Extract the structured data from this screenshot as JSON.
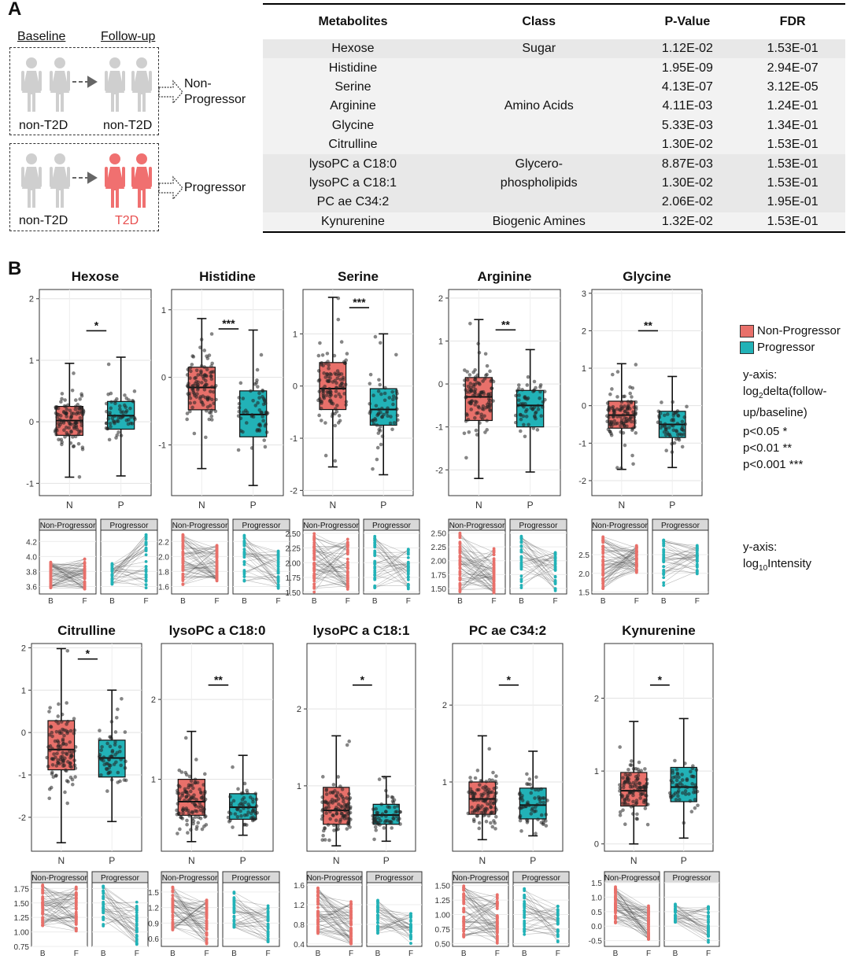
{
  "panel_a": {
    "letter": "A",
    "schematic": {
      "baseline": "Baseline",
      "followup": "Follow-up",
      "row1": {
        "left": "non-T2D",
        "right": "non-T2D",
        "outcome_line1": "Non-",
        "outcome_line2": "Progressor"
      },
      "row2": {
        "left": "non-T2D",
        "right": "T2D",
        "outcome": "Progressor"
      }
    },
    "table": {
      "headers": [
        "Metabolites",
        "Class",
        "P-Value",
        "FDR"
      ],
      "rows": [
        {
          "metabolite": "Hexose",
          "cls": "Sugar",
          "p": "1.12E-02",
          "fdr": "1.53E-01"
        },
        {
          "metabolite": "Histidine",
          "cls": "",
          "p": "1.95E-09",
          "fdr": "2.94E-07"
        },
        {
          "metabolite": "Serine",
          "cls": "",
          "p": "4.13E-07",
          "fdr": "3.12E-05"
        },
        {
          "metabolite": "Arginine",
          "cls": "Amino Acids",
          "p": "4.11E-03",
          "fdr": "1.24E-01"
        },
        {
          "metabolite": "Glycine",
          "cls": "",
          "p": "5.33E-03",
          "fdr": "1.34E-01"
        },
        {
          "metabolite": "Citrulline",
          "cls": "",
          "p": "1.30E-02",
          "fdr": "1.53E-01"
        },
        {
          "metabolite": "lysoPC a C18:0",
          "cls": "Glycero-",
          "p": "8.87E-03",
          "fdr": "1.53E-01"
        },
        {
          "metabolite": "lysoPC a C18:1",
          "cls": "phospholipids",
          "p": "1.30E-02",
          "fdr": "1.53E-01"
        },
        {
          "metabolite": "PC ae C34:2",
          "cls": "",
          "p": "2.06E-02",
          "fdr": "1.95E-01"
        },
        {
          "metabolite": "Kynurenine",
          "cls": "Biogenic Amines",
          "p": "1.32E-02",
          "fdr": "1.53E-01"
        }
      ]
    }
  },
  "panel_b": {
    "letter": "B",
    "legend": {
      "items": [
        {
          "label": "Non-Progressor",
          "color": "#E8706A"
        },
        {
          "label": "Progressor",
          "color": "#22B2B7"
        }
      ]
    },
    "yaxis_note": {
      "l1": "y-axis:",
      "l2a": "log",
      "l2sub": "2",
      "l2b": "delta(follow-",
      "l3": "up/baseline)"
    },
    "sig": {
      "s1": "p<0.05 *",
      "s2": "p<0.01 **",
      "s3": "p<0.001 ***"
    },
    "yaxis_note2": {
      "l1": "y-axis:",
      "l2a": "log",
      "l2sub": "10",
      "l2b": "Intensity"
    },
    "facet_labels": [
      "Non-Progressor",
      "Progressor"
    ]
  },
  "chart_data": [
    {
      "type": "box",
      "title": "Hexose",
      "categories": [
        "N",
        "P"
      ],
      "ylim": [
        -1.2,
        2.15
      ],
      "yticks": [
        -1,
        0,
        1,
        2
      ],
      "series": [
        {
          "name": "Non-Progressor",
          "q1": -0.22,
          "median": 0.02,
          "q3": 0.25,
          "whisker_low": -0.9,
          "whisker_high": 0.95
        },
        {
          "name": "Progressor",
          "q1": -0.12,
          "median": 0.1,
          "q3": 0.33,
          "whisker_low": -0.88,
          "whisker_high": 1.05
        }
      ],
      "significance": "*"
    },
    {
      "type": "box",
      "title": "Histidine",
      "categories": [
        "N",
        "P"
      ],
      "ylim": [
        -1.75,
        1.3
      ],
      "yticks": [
        -1,
        0,
        1
      ],
      "series": [
        {
          "name": "Non-Progressor",
          "q1": -0.48,
          "median": -0.15,
          "q3": 0.15,
          "whisker_low": -1.35,
          "whisker_high": 0.87
        },
        {
          "name": "Progressor",
          "q1": -0.88,
          "median": -0.55,
          "q3": -0.2,
          "whisker_low": -1.6,
          "whisker_high": 0.7
        }
      ],
      "significance": "***"
    },
    {
      "type": "box",
      "title": "Serine",
      "categories": [
        "N",
        "P"
      ],
      "ylim": [
        -2.1,
        1.85
      ],
      "yticks": [
        -2,
        -1,
        0,
        1
      ],
      "series": [
        {
          "name": "Non-Progressor",
          "q1": -0.45,
          "median": -0.05,
          "q3": 0.45,
          "whisker_low": -1.55,
          "whisker_high": 1.7
        },
        {
          "name": "Progressor",
          "q1": -0.75,
          "median": -0.45,
          "q3": -0.05,
          "whisker_low": -1.7,
          "whisker_high": 1.0
        }
      ],
      "significance": "***"
    },
    {
      "type": "box",
      "title": "Arginine",
      "categories": [
        "N",
        "P"
      ],
      "ylim": [
        -2.6,
        2.2
      ],
      "yticks": [
        -2,
        -1,
        0,
        1,
        2
      ],
      "series": [
        {
          "name": "Non-Progressor",
          "q1": -0.85,
          "median": -0.3,
          "q3": 0.15,
          "whisker_low": -2.2,
          "whisker_high": 1.5
        },
        {
          "name": "Progressor",
          "q1": -1.0,
          "median": -0.5,
          "q3": -0.15,
          "whisker_low": -2.05,
          "whisker_high": 0.8
        }
      ],
      "significance": "**"
    },
    {
      "type": "box",
      "title": "Glycine",
      "categories": [
        "N",
        "P"
      ],
      "ylim": [
        -2.4,
        3.1
      ],
      "yticks": [
        -2,
        -1,
        0,
        1,
        2,
        3
      ],
      "series": [
        {
          "name": "Non-Progressor",
          "q1": -0.6,
          "median": -0.25,
          "q3": 0.12,
          "whisker_low": -1.7,
          "whisker_high": 1.12
        },
        {
          "name": "Progressor",
          "q1": -0.85,
          "median": -0.5,
          "q3": -0.15,
          "whisker_low": -1.65,
          "whisker_high": 0.78
        }
      ],
      "significance": "**"
    },
    {
      "type": "box",
      "title": "Citrulline",
      "categories": [
        "N",
        "P"
      ],
      "ylim": [
        -2.8,
        2.1
      ],
      "yticks": [
        -2,
        -1,
        0,
        1,
        2
      ],
      "series": [
        {
          "name": "Non-Progressor",
          "q1": -0.88,
          "median": -0.4,
          "q3": 0.28,
          "whisker_low": -2.6,
          "whisker_high": 1.98
        },
        {
          "name": "Progressor",
          "q1": -1.05,
          "median": -0.6,
          "q3": -0.18,
          "whisker_low": -2.1,
          "whisker_high": 1.0
        }
      ],
      "significance": "*"
    },
    {
      "type": "box",
      "title": "lysoPC a C18:0",
      "categories": [
        "N",
        "P"
      ],
      "ylim": [
        0.1,
        2.7
      ],
      "yticks": [
        1,
        2
      ],
      "series": [
        {
          "name": "Non-Progressor",
          "q1": 0.55,
          "median": 0.72,
          "q3": 1.0,
          "whisker_low": 0.22,
          "whisker_high": 1.6
        },
        {
          "name": "Progressor",
          "q1": 0.5,
          "median": 0.65,
          "q3": 0.82,
          "whisker_low": 0.3,
          "whisker_high": 1.3
        }
      ],
      "significance": "**"
    },
    {
      "type": "box",
      "title": "lysoPC a C18:1",
      "categories": [
        "N",
        "P"
      ],
      "ylim": [
        0.15,
        2.85
      ],
      "yticks": [
        1,
        2
      ],
      "series": [
        {
          "name": "Non-Progressor",
          "q1": 0.5,
          "median": 0.68,
          "q3": 0.98,
          "whisker_low": 0.22,
          "whisker_high": 1.65
        },
        {
          "name": "Progressor",
          "q1": 0.5,
          "median": 0.62,
          "q3": 0.76,
          "whisker_low": 0.28,
          "whisker_high": 1.12
        }
      ],
      "significance": "*"
    },
    {
      "type": "box",
      "title": "PC ae C34:2",
      "categories": [
        "N",
        "P"
      ],
      "ylim": [
        0.1,
        2.8
      ],
      "yticks": [
        1,
        2
      ],
      "series": [
        {
          "name": "Non-Progressor",
          "q1": 0.58,
          "median": 0.78,
          "q3": 1.0,
          "whisker_low": 0.25,
          "whisker_high": 1.6
        },
        {
          "name": "Progressor",
          "q1": 0.52,
          "median": 0.7,
          "q3": 0.92,
          "whisker_low": 0.3,
          "whisker_high": 1.4
        }
      ],
      "significance": "*"
    },
    {
      "type": "box",
      "title": "Kynurenine",
      "categories": [
        "N",
        "P"
      ],
      "ylim": [
        -0.1,
        2.75
      ],
      "yticks": [
        0,
        1,
        2
      ],
      "series": [
        {
          "name": "Non-Progressor",
          "q1": 0.52,
          "median": 0.73,
          "q3": 0.98,
          "whisker_low": 0.0,
          "whisker_high": 1.68
        },
        {
          "name": "Progressor",
          "q1": 0.58,
          "median": 0.78,
          "q3": 1.05,
          "whisker_low": 0.08,
          "whisker_high": 1.72
        }
      ],
      "significance": "*"
    }
  ],
  "paired_data": [
    {
      "metabolite": "Hexose",
      "xticks": [
        "B",
        "F"
      ],
      "ylim": [
        3.5,
        4.35
      ],
      "yticks": [
        "3.6",
        "3.8",
        "4.0",
        "4.2"
      ],
      "non_progressor": {
        "baseline_range": [
          3.58,
          3.93
        ],
        "followup_range": [
          3.56,
          3.98
        ]
      },
      "progressor": {
        "baseline_range": [
          3.63,
          3.92
        ],
        "followup_range": [
          3.55,
          4.3
        ]
      }
    },
    {
      "metabolite": "Histidine",
      "xticks": [
        "B",
        "F"
      ],
      "ylim": [
        1.5,
        2.35
      ],
      "yticks": [
        "1.6",
        "1.8",
        "2.0",
        "2.2"
      ],
      "non_progressor": {
        "baseline_range": [
          1.62,
          2.3
        ],
        "followup_range": [
          1.66,
          2.16
        ]
      },
      "progressor": {
        "baseline_range": [
          1.66,
          2.3
        ],
        "followup_range": [
          1.55,
          2.1
        ]
      }
    },
    {
      "metabolite": "Serine",
      "xticks": [
        "B",
        "F"
      ],
      "ylim": [
        1.47,
        2.55
      ],
      "yticks": [
        "1.50",
        "1.75",
        "2.00",
        "2.25",
        "2.50"
      ],
      "non_progressor": {
        "baseline_range": [
          1.5,
          2.5
        ],
        "followup_range": [
          1.55,
          2.42
        ]
      },
      "progressor": {
        "baseline_range": [
          1.55,
          2.48
        ],
        "followup_range": [
          1.55,
          2.25
        ]
      }
    },
    {
      "metabolite": "Arginine",
      "xticks": [
        "B",
        "F"
      ],
      "ylim": [
        1.4,
        2.55
      ],
      "yticks": [
        "1.50",
        "1.75",
        "2.00",
        "2.25",
        "2.50"
      ],
      "non_progressor": {
        "baseline_range": [
          1.42,
          2.5
        ],
        "followup_range": [
          1.42,
          2.22
        ]
      },
      "progressor": {
        "baseline_range": [
          1.5,
          2.48
        ],
        "followup_range": [
          1.45,
          2.2
        ]
      }
    },
    {
      "metabolite": "Glycine",
      "xticks": [
        "B",
        "F"
      ],
      "ylim": [
        1.45,
        3.15
      ],
      "yticks": [
        "1.5",
        "2.0",
        "2.5"
      ],
      "non_progressor": {
        "baseline_range": [
          1.55,
          3.0
        ],
        "followup_range": [
          2.0,
          2.75
        ]
      },
      "progressor": {
        "baseline_range": [
          1.65,
          2.95
        ],
        "followup_range": [
          1.95,
          2.75
        ]
      }
    },
    {
      "metabolite": "Citrulline",
      "xticks": [
        "B",
        "F"
      ],
      "ylim": [
        0.75,
        1.85
      ],
      "yticks": [
        "0.75",
        "1.00",
        "1.25",
        "1.50",
        "1.75"
      ],
      "non_progressor": {
        "baseline_range": [
          1.1,
          1.82
        ],
        "followup_range": [
          1.0,
          1.78
        ]
      },
      "progressor": {
        "baseline_range": [
          1.1,
          1.8
        ],
        "followup_range": [
          0.78,
          1.55
        ]
      }
    },
    {
      "metabolite": "lysoPC a C18:0",
      "xticks": [
        "B",
        "F"
      ],
      "ylim": [
        0.45,
        1.68
      ],
      "yticks": [
        "0.6",
        "0.9",
        "1.2",
        "1.5"
      ],
      "non_progressor": {
        "baseline_range": [
          0.75,
          1.6
        ],
        "followup_range": [
          0.5,
          1.35
        ]
      },
      "progressor": {
        "baseline_range": [
          0.75,
          1.5
        ],
        "followup_range": [
          0.52,
          1.25
        ]
      }
    },
    {
      "metabolite": "lysoPC a C18:1",
      "xticks": [
        "B",
        "F"
      ],
      "ylim": [
        0.35,
        1.65
      ],
      "yticks": [
        "0.4",
        "0.8",
        "1.2",
        "1.6"
      ],
      "non_progressor": {
        "baseline_range": [
          0.6,
          1.55
        ],
        "followup_range": [
          0.4,
          1.3
        ]
      },
      "progressor": {
        "baseline_range": [
          0.6,
          1.3
        ],
        "followup_range": [
          0.38,
          1.05
        ]
      }
    },
    {
      "metabolite": "PC ae C34:2",
      "xticks": [
        "B",
        "F"
      ],
      "ylim": [
        0.45,
        1.55
      ],
      "yticks": [
        "0.50",
        "0.75",
        "1.00",
        "1.25",
        "1.50"
      ],
      "non_progressor": {
        "baseline_range": [
          0.6,
          1.5
        ],
        "followup_range": [
          0.5,
          1.35
        ]
      },
      "progressor": {
        "baseline_range": [
          0.65,
          1.45
        ],
        "followup_range": [
          0.5,
          1.2
        ]
      }
    },
    {
      "metabolite": "Kynurenine",
      "xticks": [
        "B",
        "F"
      ],
      "ylim": [
        -0.7,
        1.5
      ],
      "yticks": [
        "-0.5",
        "0.0",
        "0.5",
        "1.0",
        "1.5"
      ],
      "non_progressor": {
        "baseline_range": [
          0.1,
          1.45
        ],
        "followup_range": [
          -0.5,
          0.7
        ]
      },
      "progressor": {
        "baseline_range": [
          0.1,
          0.8
        ],
        "followup_range": [
          -0.6,
          0.7
        ]
      }
    }
  ]
}
